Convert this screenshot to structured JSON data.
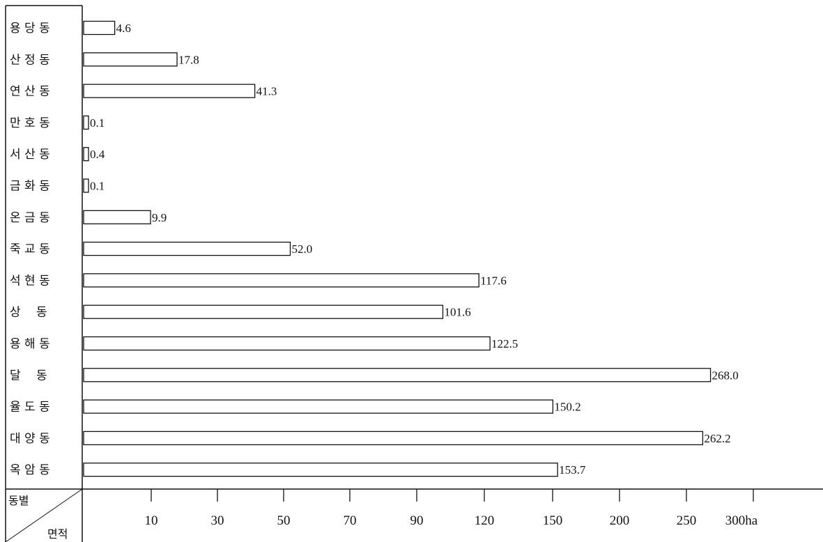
{
  "chart_data": {
    "type": "bar",
    "orientation": "horizontal",
    "categories": [
      "용 당 동",
      "산 정 동",
      "연 산 동",
      "만 호 동",
      "서 산 동",
      "금 화 동",
      "온 금 동",
      "죽 교 동",
      "석 현 동",
      "상　 동",
      "용 해 동",
      "달　 동",
      "율 도 동",
      "대 양 동",
      "옥 암 동"
    ],
    "values": [
      4.6,
      17.8,
      41.3,
      0.1,
      0.4,
      0.1,
      9.9,
      52.0,
      117.6,
      101.6,
      122.5,
      268.0,
      150.2,
      262.2,
      153.7
    ],
    "value_labels": [
      "4.6",
      "17.8",
      "41.3",
      "0.1",
      "0.4",
      "0.1",
      "9.9",
      "52.0",
      "117.6",
      "101.6",
      "122.5",
      "268.0",
      "150.2",
      "262.2",
      "153.7"
    ],
    "x_ticks": [
      10,
      30,
      50,
      70,
      90,
      120,
      150,
      200,
      250,
      300
    ],
    "x_tick_labels": [
      "10",
      "30",
      "50",
      "70",
      "90",
      "120",
      "150",
      "200",
      "250",
      "300ha"
    ],
    "x_scale": "non-linear (piecewise)",
    "header_row_label": "동별",
    "header_col_label": "면적",
    "grid": false,
    "legend": "none"
  }
}
